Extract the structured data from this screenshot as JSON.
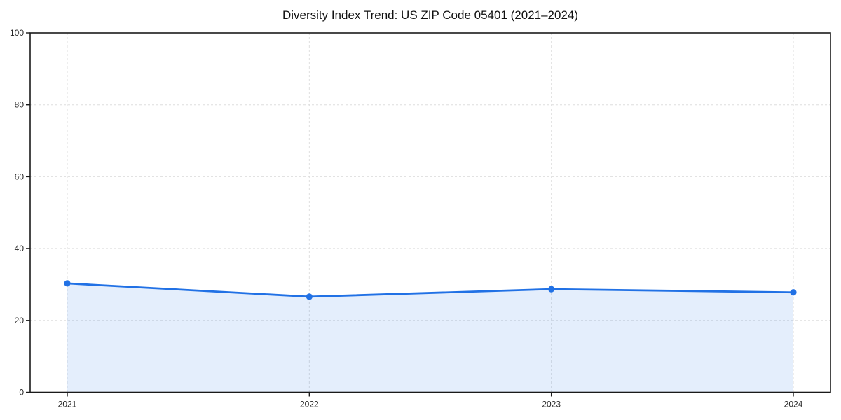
{
  "chart_data": {
    "type": "line",
    "title": "Diversity Index Trend: US ZIP Code 05401 (2021–2024)",
    "categories": [
      "2021",
      "2022",
      "2023",
      "2024"
    ],
    "series": [
      {
        "name": "Diversity Index",
        "values": [
          30.3,
          26.6,
          28.7,
          27.8
        ]
      }
    ],
    "xlabel": "",
    "ylabel": "",
    "ylim": [
      0,
      100
    ],
    "yticks": [
      0,
      20,
      40,
      60,
      80,
      100
    ],
    "grid": "dashed-both-axes",
    "legend": "none",
    "marker": "circle",
    "area_fill": true,
    "colors": {
      "line": "#2171e5",
      "marker": "#2171e5",
      "area_fill": "rgba(33, 113, 229, 0.12)",
      "grid": "#dedede",
      "axis": "#1a1a1a",
      "tick_label": "#262626",
      "title": "#111111",
      "background": "#ffffff"
    }
  }
}
